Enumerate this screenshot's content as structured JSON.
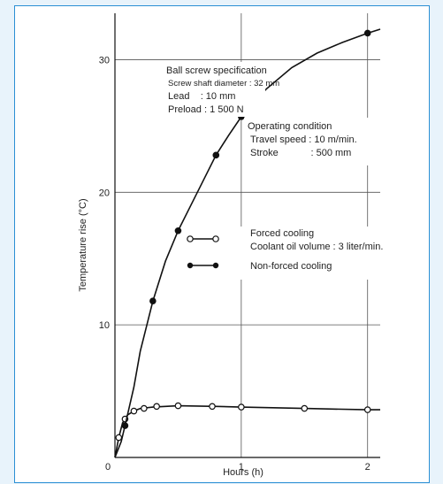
{
  "chart_data": {
    "type": "line",
    "xlabel": "Hours (h)",
    "ylabel": "Temperature rise (°C)",
    "xlim": [
      0,
      2.1
    ],
    "ylim": [
      0,
      33.5
    ],
    "x_ticks": [
      {
        "value": 0,
        "label": "0"
      },
      {
        "value": 1,
        "label": "1"
      },
      {
        "value": 2,
        "label": "2"
      }
    ],
    "y_ticks": [
      {
        "value": 10,
        "label": "10"
      },
      {
        "value": 20,
        "label": "20"
      },
      {
        "value": 30,
        "label": "30"
      }
    ],
    "grid": true,
    "series": [
      {
        "name": "Forced cooling",
        "marker": "open-circle",
        "color": "#111111",
        "curve": [
          [
            0,
            0
          ],
          [
            0.03,
            1.5
          ],
          [
            0.06,
            2.6
          ],
          [
            0.1,
            3.2
          ],
          [
            0.15,
            3.5
          ],
          [
            0.2,
            3.7
          ],
          [
            0.3,
            3.8
          ],
          [
            0.5,
            3.9
          ],
          [
            0.8,
            3.85
          ],
          [
            1.0,
            3.8
          ],
          [
            1.5,
            3.7
          ],
          [
            2.0,
            3.6
          ],
          [
            2.1,
            3.6
          ]
        ],
        "points": [
          [
            0.03,
            1.5
          ],
          [
            0.08,
            2.9
          ],
          [
            0.15,
            3.5
          ],
          [
            0.23,
            3.7
          ],
          [
            0.33,
            3.85
          ],
          [
            0.5,
            3.9
          ],
          [
            0.77,
            3.85
          ],
          [
            1.0,
            3.8
          ],
          [
            1.5,
            3.7
          ],
          [
            2.0,
            3.6
          ]
        ]
      },
      {
        "name": "Non-forced cooling",
        "marker": "filled-circle",
        "color": "#111111",
        "curve": [
          [
            0,
            0
          ],
          [
            0.05,
            1.2
          ],
          [
            0.08,
            2.4
          ],
          [
            0.15,
            5.3
          ],
          [
            0.2,
            8.0
          ],
          [
            0.3,
            11.8
          ],
          [
            0.4,
            14.8
          ],
          [
            0.5,
            17.1
          ],
          [
            0.6,
            19.0
          ],
          [
            0.7,
            20.9
          ],
          [
            0.8,
            22.8
          ],
          [
            0.9,
            24.3
          ],
          [
            1.0,
            25.7
          ],
          [
            1.2,
            27.8
          ],
          [
            1.4,
            29.4
          ],
          [
            1.6,
            30.5
          ],
          [
            1.8,
            31.3
          ],
          [
            2.0,
            32.0
          ],
          [
            2.1,
            32.3
          ]
        ],
        "points": [
          [
            0.08,
            2.4
          ],
          [
            0.3,
            11.8
          ],
          [
            0.5,
            17.1
          ],
          [
            0.8,
            22.8
          ],
          [
            1.0,
            25.7
          ],
          [
            2.0,
            32.0
          ]
        ]
      }
    ],
    "legend": {
      "placement": "center-right",
      "forced": {
        "label": "Forced cooling",
        "sublabel": "Coolant oil volume : 3 liter/min."
      },
      "nonforced": {
        "label": "Non-forced cooling"
      }
    },
    "annotations": {
      "spec": {
        "title": "Ball screw specification",
        "line1": "Screw shaft diameter : 32 mm",
        "line2": "Lead    : 10 mm",
        "line3": "Preload : 1 500 N"
      },
      "condition": {
        "title": "Operating condition",
        "line1": "Travel speed : 10 m/min.",
        "line2": "Stroke            : 500 mm"
      }
    }
  }
}
